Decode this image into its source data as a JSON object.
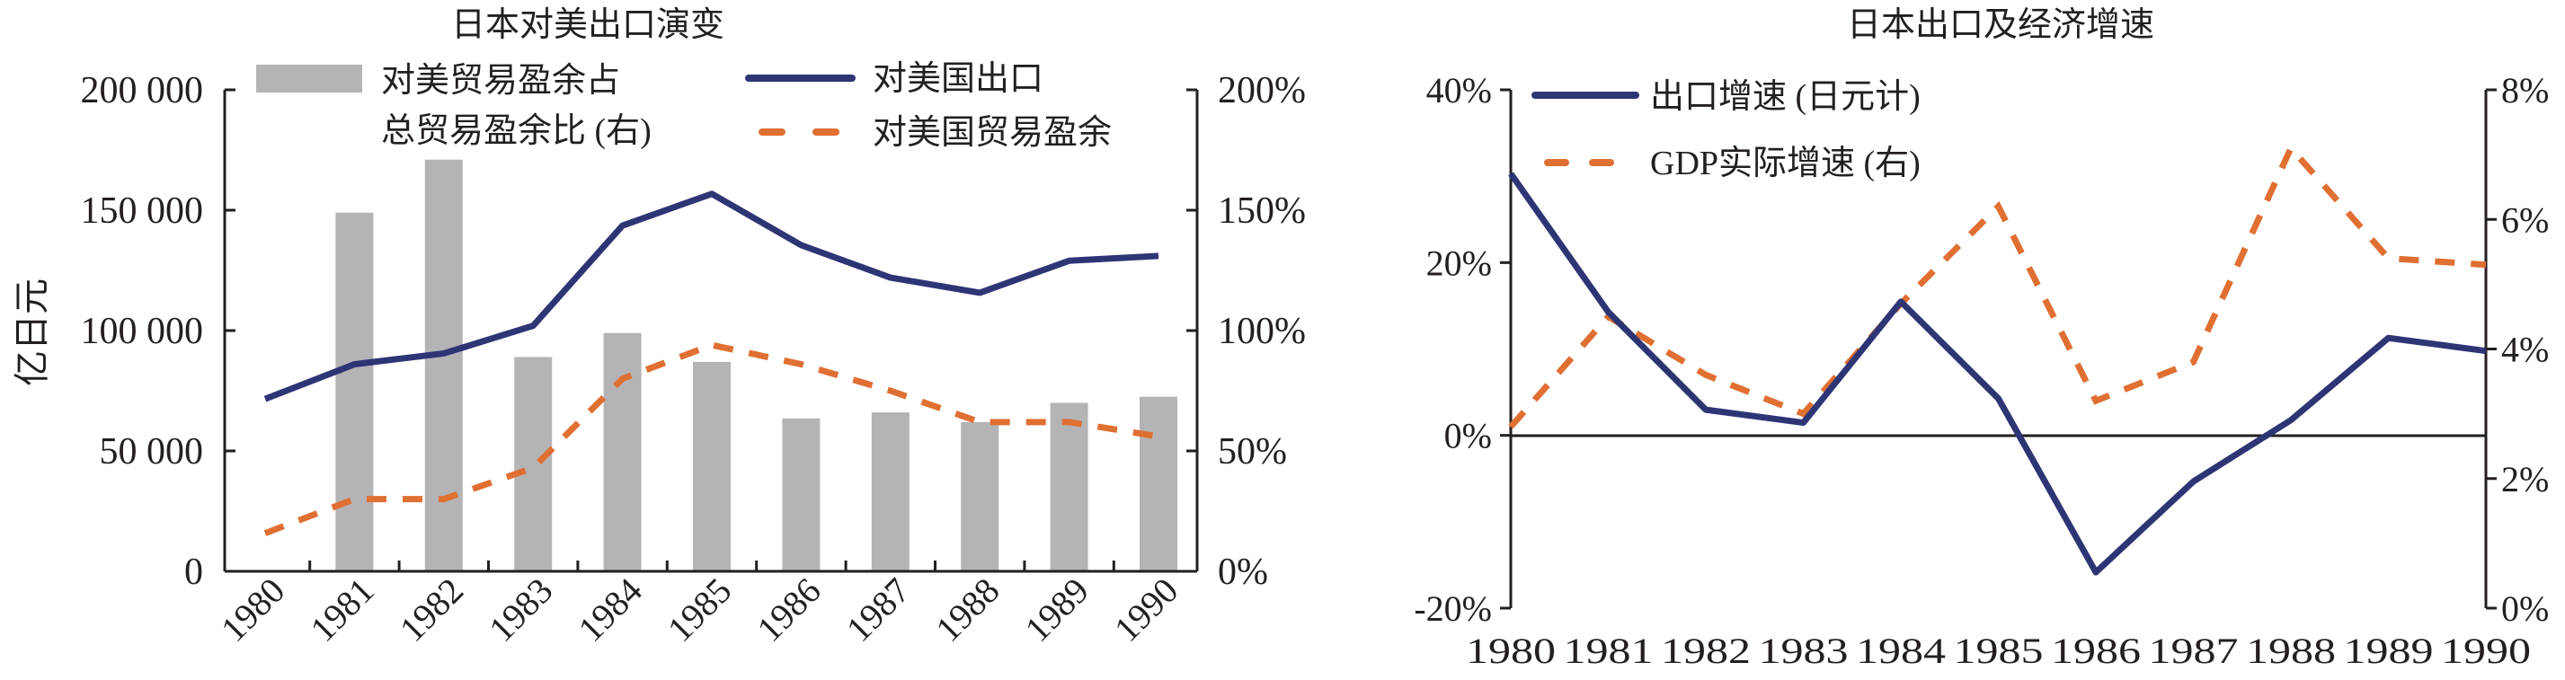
{
  "colors": {
    "navy": "#2e3575",
    "orange": "#e06f32",
    "bar": "#b4b4b6",
    "axis": "#231f20"
  },
  "chart_data": [
    {
      "type": "bar+line",
      "title": "日本对美出口演变",
      "ylabel": "亿日元",
      "categories": [
        "1980",
        "1981",
        "1982",
        "1983",
        "1984",
        "1985",
        "1986",
        "1987",
        "1988",
        "1989",
        "1990"
      ],
      "ylim": [
        0,
        200000
      ],
      "ylim_right": [
        0,
        200
      ],
      "yticks_left": [
        "0",
        "50 000",
        "100 000",
        "150 000",
        "200 000"
      ],
      "yticks_right": [
        "0%",
        "50%",
        "100%",
        "150%",
        "200%"
      ],
      "legend": {
        "bar_line1": "对美贸易盈余占",
        "bar_line2": "总贸易盈余比 (右)",
        "export": "对美国出口",
        "surplus": "对美国贸易盈余"
      },
      "series": [
        {
          "name": "对美贸易盈余占总贸易盈余比 (右)",
          "type": "bar",
          "axis": "right",
          "unit": "%",
          "values": [
            null,
            149,
            171,
            89,
            99,
            87,
            63.5,
            66,
            62,
            70,
            72.5
          ]
        },
        {
          "name": "对美国出口",
          "type": "line",
          "axis": "left",
          "values": [
            71600,
            86000,
            90500,
            102000,
            143600,
            156800,
            135500,
            122000,
            115700,
            129000,
            131000
          ]
        },
        {
          "name": "对美国贸易盈余",
          "type": "dashed-line",
          "axis": "left",
          "values": [
            15800,
            30000,
            30000,
            43000,
            80000,
            94000,
            86000,
            75000,
            62000,
            62000,
            56000
          ]
        }
      ]
    },
    {
      "type": "line",
      "title": "日本出口及经济增速",
      "categories": [
        "1980",
        "1981",
        "1982",
        "1983",
        "1984",
        "1985",
        "1986",
        "1987",
        "1988",
        "1989",
        "1990"
      ],
      "ylim": [
        -20,
        40
      ],
      "ylim_right": [
        0,
        8
      ],
      "yticks_left": [
        "-20%",
        "0%",
        "20%",
        "40%"
      ],
      "yticks_right": [
        "0%",
        "2%",
        "4%",
        "6%",
        "8%"
      ],
      "legend": {
        "export": "出口增速 (日元计)",
        "gdp": "GDP实际增速 (右)"
      },
      "series": [
        {
          "name": "出口增速 (日元计)",
          "type": "line",
          "axis": "left",
          "unit": "%",
          "values": [
            30.3,
            14.3,
            3.0,
            1.5,
            15.5,
            4.3,
            -15.8,
            -5.3,
            1.8,
            11.3,
            9.8
          ]
        },
        {
          "name": "GDP实际增速 (右)",
          "type": "dashed-line",
          "axis": "right",
          "unit": "%",
          "values": [
            2.8,
            4.5,
            3.6,
            3.0,
            4.7,
            6.2,
            3.2,
            3.8,
            7.1,
            5.4,
            5.3
          ]
        }
      ]
    }
  ]
}
